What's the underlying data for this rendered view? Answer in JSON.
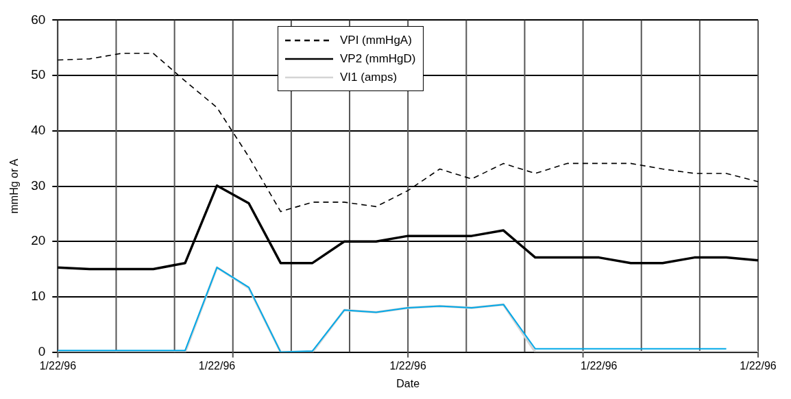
{
  "chart_data": {
    "type": "line",
    "xlabel": "Date",
    "ylabel": "mmHg or A",
    "categories": [
      "1/22/96",
      null,
      null,
      null,
      null,
      "1/22/96",
      null,
      null,
      null,
      null,
      null,
      "1/22/96",
      null,
      null,
      null,
      null,
      null,
      "1/22/96",
      null,
      null,
      null,
      null,
      "1/22/96"
    ],
    "ylim": [
      0,
      60
    ],
    "yticks": [
      0,
      10,
      20,
      30,
      40,
      50,
      60
    ],
    "grid": true,
    "legend": "top",
    "marker": "none",
    "series": [
      {
        "name": "VPI (mmHgA)",
        "color": "#000000",
        "line_style": "dashed",
        "values": [
          52.8,
          53,
          54,
          54,
          49,
          44.2,
          35.3,
          25.4,
          27.1,
          27.1,
          26.3,
          29.2,
          33.1,
          31.3,
          34.1,
          32.3,
          34.1,
          34.1,
          34.1,
          33.1,
          32.3,
          32.3,
          30.8
        ]
      },
      {
        "name": "VP2 (mmHgD)",
        "color": "#000000",
        "line_style": "solid",
        "values": [
          15.3,
          15,
          15,
          15,
          16.1,
          30.1,
          26.9,
          16.1,
          16.1,
          20,
          20,
          21,
          21,
          21,
          22,
          17.1,
          17.1,
          17.1,
          16.1,
          16.1,
          17.1,
          17.1,
          16.6
        ]
      },
      {
        "name": "VI1 (amps)",
        "color": "#d4d4d4",
        "line_style": "solid",
        "values": [
          0,
          0,
          0,
          0,
          0,
          15.3,
          11.6,
          0,
          0,
          7.6,
          7.2,
          8.0,
          8.3,
          8.0,
          8.6,
          0,
          0,
          0,
          0,
          0,
          0,
          0,
          0
        ]
      },
      {
        "color": "#00a8e8",
        "line_style": "solid",
        "values": [
          0.3,
          0.3,
          0.3,
          0.3,
          0.3,
          15.3,
          11.7,
          0,
          0.2,
          7.6,
          7.2,
          8.0,
          8.3,
          8.0,
          8.6,
          0.6,
          0.6,
          0.6,
          0.6,
          0.6,
          0.6,
          0.6,
          null
        ]
      }
    ]
  }
}
